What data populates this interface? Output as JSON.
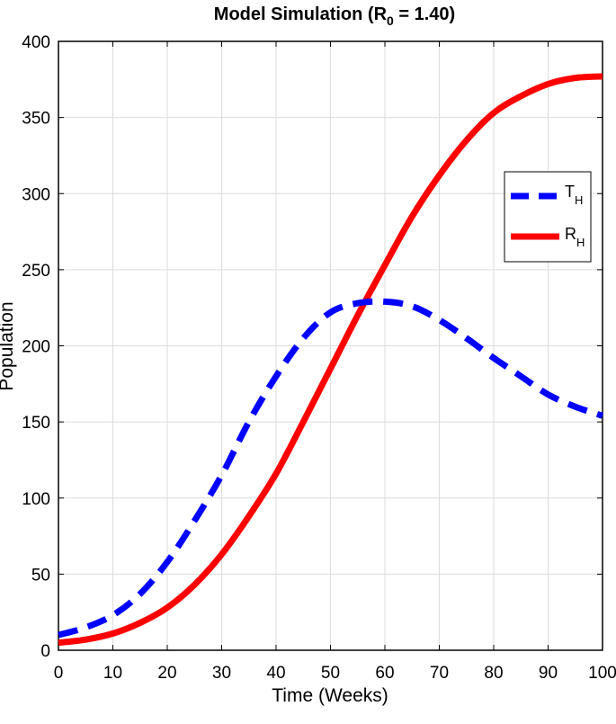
{
  "chart_data": {
    "type": "line",
    "title": "Model Simulation (R",
    "title_subscript": "0",
    "title_suffix": " = 1.40)",
    "xlabel": "Time (Weeks)",
    "ylabel": "Population",
    "xlim": [
      0,
      100
    ],
    "ylim": [
      0,
      400
    ],
    "xticks": [
      0,
      10,
      20,
      30,
      40,
      50,
      60,
      70,
      80,
      90,
      100
    ],
    "yticks": [
      0,
      50,
      100,
      150,
      200,
      250,
      300,
      350,
      400
    ],
    "grid": true,
    "legend_position": "right",
    "x": [
      0,
      5,
      10,
      15,
      20,
      25,
      30,
      35,
      40,
      45,
      50,
      55,
      60,
      65,
      70,
      75,
      80,
      85,
      90,
      95,
      100
    ],
    "series": [
      {
        "name": "T",
        "name_subscript": "H",
        "color": "#0000ff",
        "style": "dashed",
        "values": [
          10,
          15,
          23,
          37,
          58,
          85,
          115,
          150,
          180,
          205,
          222,
          228,
          229,
          226,
          217,
          205,
          192,
          180,
          168,
          160,
          154
        ]
      },
      {
        "name": "R",
        "name_subscript": "H",
        "color": "#ff0000",
        "style": "solid",
        "values": [
          5,
          7,
          11,
          18,
          28,
          43,
          63,
          88,
          116,
          150,
          185,
          220,
          253,
          285,
          312,
          335,
          353,
          364,
          372,
          376,
          377
        ]
      }
    ]
  }
}
